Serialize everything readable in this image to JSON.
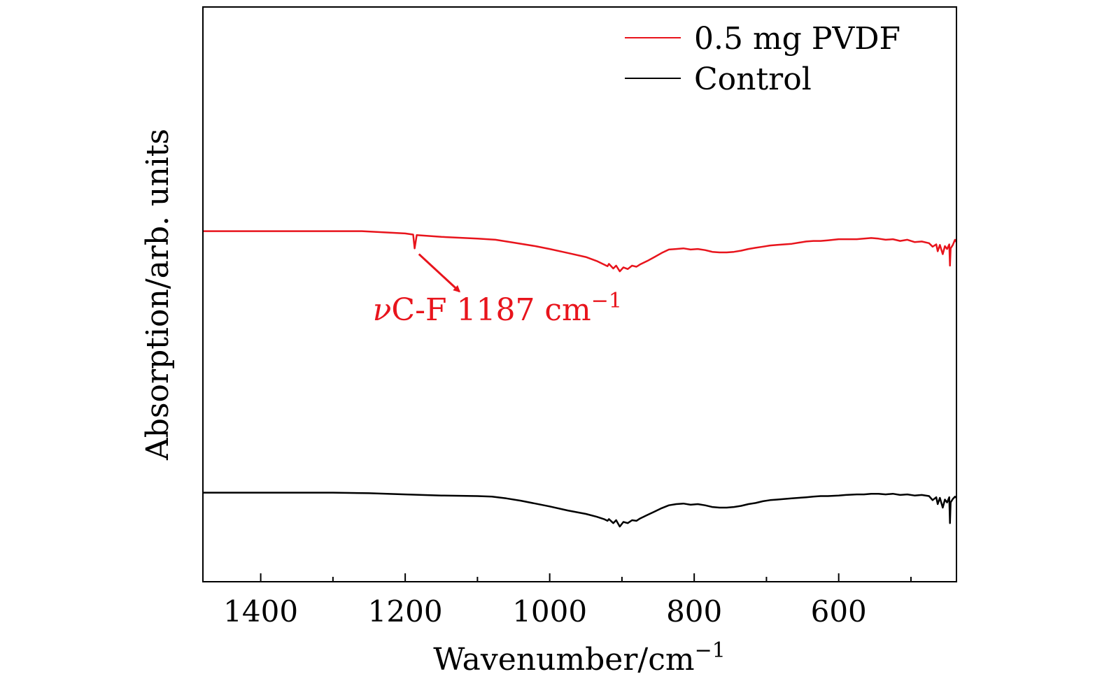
{
  "chart_data": {
    "type": "line",
    "xlabel": "Wavenumber/cm",
    "xlabel_sup": "−1",
    "ylabel": "Absorption/arb. units",
    "xlim": [
      1480,
      437
    ],
    "x_reversed": true,
    "x_ticks": [
      1400,
      1200,
      1000,
      800,
      600
    ],
    "x_tick_labels": [
      "1400",
      "1200",
      "1000",
      "800",
      "600"
    ],
    "x_minor_ticks": [
      1300,
      1100,
      900,
      700,
      500
    ],
    "y_ticks": false,
    "grid": false,
    "legend_position": "top-right",
    "ylim": [
      0,
      10
    ],
    "series": [
      {
        "name": "0.5 mg PVDF",
        "color": "#e8141c",
        "points": [
          [
            1480,
            6.1
          ],
          [
            1350,
            6.1
          ],
          [
            1260,
            6.1
          ],
          [
            1230,
            6.08
          ],
          [
            1200,
            6.06
          ],
          [
            1189,
            6.04
          ],
          [
            1187,
            5.8
          ],
          [
            1184,
            6.03
          ],
          [
            1150,
            6.0
          ],
          [
            1100,
            5.97
          ],
          [
            1075,
            5.95
          ],
          [
            1050,
            5.9
          ],
          [
            1020,
            5.84
          ],
          [
            1000,
            5.79
          ],
          [
            975,
            5.72
          ],
          [
            950,
            5.65
          ],
          [
            935,
            5.58
          ],
          [
            925,
            5.52
          ],
          [
            920,
            5.49
          ],
          [
            918,
            5.53
          ],
          [
            912,
            5.45
          ],
          [
            908,
            5.5
          ],
          [
            903,
            5.4
          ],
          [
            898,
            5.47
          ],
          [
            892,
            5.44
          ],
          [
            886,
            5.5
          ],
          [
            880,
            5.48
          ],
          [
            875,
            5.52
          ],
          [
            865,
            5.58
          ],
          [
            855,
            5.65
          ],
          [
            845,
            5.72
          ],
          [
            835,
            5.78
          ],
          [
            825,
            5.79
          ],
          [
            815,
            5.8
          ],
          [
            805,
            5.78
          ],
          [
            795,
            5.79
          ],
          [
            785,
            5.77
          ],
          [
            775,
            5.74
          ],
          [
            765,
            5.73
          ],
          [
            755,
            5.73
          ],
          [
            745,
            5.74
          ],
          [
            735,
            5.76
          ],
          [
            725,
            5.79
          ],
          [
            715,
            5.81
          ],
          [
            705,
            5.83
          ],
          [
            695,
            5.85
          ],
          [
            685,
            5.86
          ],
          [
            675,
            5.87
          ],
          [
            665,
            5.88
          ],
          [
            655,
            5.9
          ],
          [
            645,
            5.92
          ],
          [
            635,
            5.93
          ],
          [
            625,
            5.93
          ],
          [
            615,
            5.94
          ],
          [
            600,
            5.96
          ],
          [
            590,
            5.96
          ],
          [
            575,
            5.96
          ],
          [
            565,
            5.97
          ],
          [
            555,
            5.98
          ],
          [
            545,
            5.97
          ],
          [
            535,
            5.95
          ],
          [
            525,
            5.96
          ],
          [
            515,
            5.93
          ],
          [
            505,
            5.95
          ],
          [
            495,
            5.91
          ],
          [
            485,
            5.92
          ],
          [
            475,
            5.89
          ],
          [
            470,
            5.83
          ],
          [
            465,
            5.87
          ],
          [
            463,
            5.75
          ],
          [
            460,
            5.86
          ],
          [
            456,
            5.7
          ],
          [
            453,
            5.84
          ],
          [
            450,
            5.79
          ],
          [
            447,
            5.87
          ],
          [
            446,
            5.5
          ],
          [
            445,
            5.8
          ],
          [
            442,
            5.86
          ],
          [
            439,
            5.95
          ],
          [
            437,
            5.91
          ]
        ]
      },
      {
        "name": "Control",
        "color": "#000000",
        "points": [
          [
            1480,
            1.55
          ],
          [
            1400,
            1.55
          ],
          [
            1300,
            1.55
          ],
          [
            1250,
            1.54
          ],
          [
            1200,
            1.52
          ],
          [
            1150,
            1.5
          ],
          [
            1100,
            1.49
          ],
          [
            1080,
            1.48
          ],
          [
            1060,
            1.45
          ],
          [
            1040,
            1.41
          ],
          [
            1020,
            1.36
          ],
          [
            1000,
            1.31
          ],
          [
            975,
            1.24
          ],
          [
            950,
            1.18
          ],
          [
            935,
            1.13
          ],
          [
            925,
            1.09
          ],
          [
            920,
            1.06
          ],
          [
            918,
            1.09
          ],
          [
            912,
            1.02
          ],
          [
            908,
            1.07
          ],
          [
            903,
            0.96
          ],
          [
            898,
            1.04
          ],
          [
            892,
            1.02
          ],
          [
            886,
            1.07
          ],
          [
            880,
            1.06
          ],
          [
            875,
            1.1
          ],
          [
            865,
            1.16
          ],
          [
            855,
            1.22
          ],
          [
            845,
            1.28
          ],
          [
            835,
            1.33
          ],
          [
            825,
            1.35
          ],
          [
            815,
            1.36
          ],
          [
            805,
            1.34
          ],
          [
            795,
            1.35
          ],
          [
            785,
            1.33
          ],
          [
            775,
            1.3
          ],
          [
            765,
            1.29
          ],
          [
            755,
            1.29
          ],
          [
            745,
            1.3
          ],
          [
            735,
            1.32
          ],
          [
            725,
            1.35
          ],
          [
            715,
            1.37
          ],
          [
            705,
            1.4
          ],
          [
            695,
            1.42
          ],
          [
            685,
            1.43
          ],
          [
            675,
            1.44
          ],
          [
            665,
            1.45
          ],
          [
            655,
            1.46
          ],
          [
            645,
            1.47
          ],
          [
            635,
            1.48
          ],
          [
            625,
            1.49
          ],
          [
            615,
            1.49
          ],
          [
            600,
            1.5
          ],
          [
            590,
            1.51
          ],
          [
            575,
            1.52
          ],
          [
            565,
            1.52
          ],
          [
            555,
            1.53
          ],
          [
            545,
            1.53
          ],
          [
            535,
            1.52
          ],
          [
            525,
            1.53
          ],
          [
            515,
            1.51
          ],
          [
            505,
            1.52
          ],
          [
            495,
            1.5
          ],
          [
            485,
            1.51
          ],
          [
            475,
            1.49
          ],
          [
            470,
            1.42
          ],
          [
            465,
            1.47
          ],
          [
            463,
            1.35
          ],
          [
            460,
            1.46
          ],
          [
            456,
            1.29
          ],
          [
            453,
            1.43
          ],
          [
            450,
            1.38
          ],
          [
            447,
            1.47
          ],
          [
            446,
            1.02
          ],
          [
            445,
            1.38
          ],
          [
            442,
            1.44
          ],
          [
            439,
            1.48
          ],
          [
            437,
            1.46
          ]
        ]
      }
    ],
    "annotation": {
      "prefix": "ν",
      "text": "C-F 1187 cm",
      "sup": "−1",
      "color": "#e8141c",
      "arrow_from_x": 1181,
      "arrow_from_y": 5.7,
      "arrow_to_x": 1125,
      "arrow_to_y": 5.05,
      "label_x": 1245,
      "label_y": 4.55
    }
  }
}
